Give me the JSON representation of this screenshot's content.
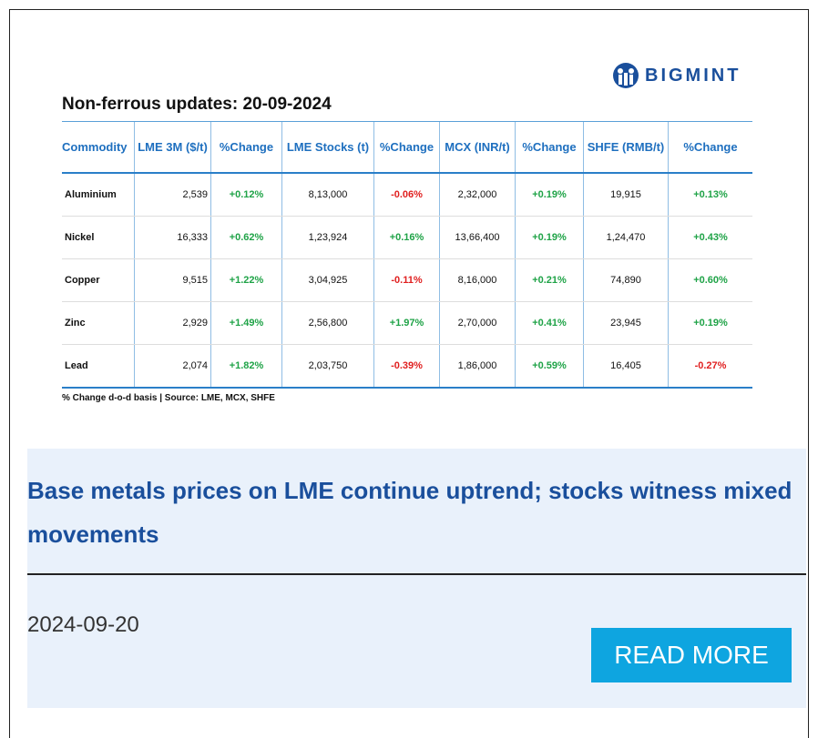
{
  "logo": "BIGMINT",
  "table": {
    "title": "Non-ferrous updates: 20-09-2024",
    "headers": [
      "Commodity",
      "LME 3M ($/t)",
      "%Change",
      "LME Stocks (t)",
      "%Change",
      "MCX (INR/t)",
      "%Change",
      "SHFE (RMB/t)",
      "%Change"
    ],
    "rows": [
      [
        "Aluminium",
        "2,539",
        "+0.12%",
        "8,13,000",
        "-0.06%",
        "2,32,000",
        "+0.19%",
        "19,915",
        "+0.13%"
      ],
      [
        "Nickel",
        "16,333",
        "+0.62%",
        "1,23,924",
        "+0.16%",
        "13,66,400",
        "+0.19%",
        "1,24,470",
        "+0.43%"
      ],
      [
        "Copper",
        "9,515",
        "+1.22%",
        "3,04,925",
        "-0.11%",
        "8,16,000",
        "+0.21%",
        "74,890",
        "+0.60%"
      ],
      [
        "Zinc",
        "2,929",
        "+1.49%",
        "2,56,800",
        "+1.97%",
        "2,70,000",
        "+0.41%",
        "23,945",
        "+0.19%"
      ],
      [
        "Lead",
        "2,074",
        "+1.82%",
        "2,03,750",
        "-0.39%",
        "1,86,000",
        "+0.59%",
        "16,405",
        "-0.27%"
      ]
    ],
    "footnote": "% Change d-o-d basis | Source: LME, MCX, SHFE"
  },
  "article": {
    "headline": "Base metals prices on LME continue uptrend; stocks witness mixed movements",
    "date": "2024-09-20",
    "button": "READ MORE"
  }
}
